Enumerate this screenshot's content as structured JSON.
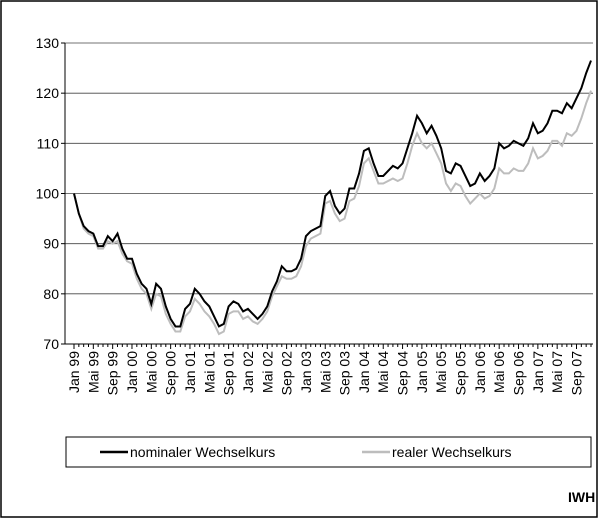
{
  "chart_data": {
    "type": "line",
    "categories": [
      "Jan 99",
      null,
      null,
      null,
      "Mai 99",
      null,
      null,
      null,
      "Sep 99",
      null,
      null,
      null,
      "Jan 00",
      null,
      null,
      null,
      "Mai 00",
      null,
      null,
      null,
      "Sep 00",
      null,
      null,
      null,
      "Jan 01",
      null,
      null,
      null,
      "Mai 01",
      null,
      null,
      null,
      "Sep 01",
      null,
      null,
      null,
      "Jan 02",
      null,
      null,
      null,
      "Mai 02",
      null,
      null,
      null,
      "Sep 02",
      null,
      null,
      null,
      "Jan 03",
      null,
      null,
      null,
      "Mai 03",
      null,
      null,
      null,
      "Sep 03",
      null,
      null,
      null,
      "Jan 04",
      null,
      null,
      null,
      "Mai 04",
      null,
      null,
      null,
      "Sep 04",
      null,
      null,
      null,
      "Jan 05",
      null,
      null,
      null,
      "Mai 05",
      null,
      null,
      null,
      "Sep 05",
      null,
      null,
      null,
      "Jan 06",
      null,
      null,
      null,
      "Mai 06",
      null,
      null,
      null,
      "Sep 06",
      null,
      null,
      null,
      "Jan 07",
      null,
      null,
      null,
      "Mai 07",
      null,
      null,
      null,
      "Sep 07",
      null,
      null,
      null
    ],
    "series": [
      {
        "name": "nominaler Wechselkurs",
        "color": "#000000",
        "values": [
          100,
          96,
          93.5,
          92.5,
          92,
          89.5,
          89.5,
          91.5,
          90.5,
          92,
          89,
          87,
          87,
          84,
          82,
          81,
          78,
          82,
          81,
          77.5,
          75,
          73.5,
          73.5,
          77,
          78,
          81,
          80,
          78.5,
          77.5,
          75.5,
          73.5,
          74,
          77.5,
          78.5,
          78,
          76.5,
          77,
          76,
          75,
          76,
          77.5,
          80.5,
          82.5,
          85.5,
          84.5,
          84.5,
          85,
          87,
          91.5,
          92.5,
          93,
          93.5,
          99.5,
          100.5,
          97.5,
          96,
          97,
          101,
          101,
          104,
          108.5,
          109,
          106,
          103.5,
          103.5,
          104.5,
          105.5,
          105,
          106,
          109,
          112,
          115.5,
          114,
          112,
          113.5,
          111.5,
          109,
          104.5,
          104,
          106,
          105.5,
          103.5,
          101.5,
          102,
          104,
          102.5,
          103.5,
          105,
          110,
          109,
          109.5,
          110.5,
          110,
          109.5,
          111,
          114,
          112,
          112.5,
          114,
          116.5,
          116.5,
          116,
          118,
          117,
          119,
          121,
          124,
          126.5
        ]
      },
      {
        "name": "realer Wechselkurs",
        "color": "#bdbdbd",
        "values": [
          100,
          96,
          93,
          92,
          91.5,
          89,
          89,
          90.5,
          90,
          90.5,
          88,
          86.5,
          86,
          83,
          81,
          80,
          77,
          80,
          79.5,
          76,
          74,
          72.5,
          72.5,
          75.5,
          76.5,
          79,
          78,
          76.5,
          75.5,
          74,
          72,
          72.5,
          76,
          76.5,
          76.5,
          75,
          75.5,
          74.5,
          74,
          75,
          76.5,
          79.5,
          81.5,
          83.5,
          83,
          83,
          83.5,
          85.5,
          89.5,
          91,
          91.5,
          92,
          98,
          98.5,
          96,
          94.5,
          95,
          98.5,
          99,
          101.5,
          106,
          107,
          104.5,
          102,
          102,
          102.5,
          103,
          102.5,
          103,
          106,
          109.5,
          112,
          110,
          109,
          110,
          108,
          106,
          102,
          100.5,
          102,
          101.5,
          99.5,
          98,
          99,
          100,
          99,
          99.5,
          101,
          105,
          104,
          104,
          105,
          104.5,
          104.5,
          106,
          109,
          107,
          107.5,
          108.5,
          110.5,
          110.5,
          109.5,
          112,
          111.5,
          112.5,
          115,
          118,
          120.5
        ]
      }
    ],
    "ylim": [
      70,
      130
    ],
    "yticks": [
      70,
      80,
      90,
      100,
      110,
      120,
      130
    ],
    "grid": true,
    "legend": "bottom",
    "source": "IWH"
  }
}
